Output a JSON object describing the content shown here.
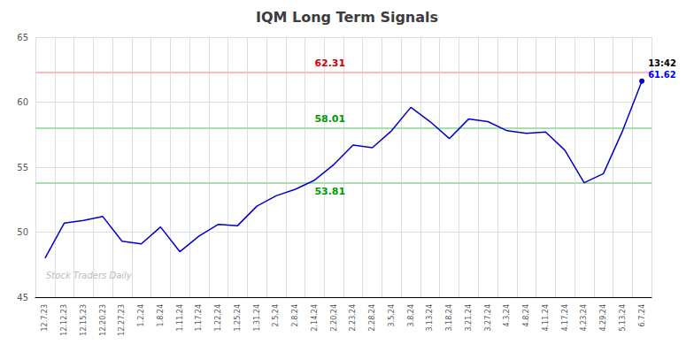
{
  "chart_data": {
    "type": "line",
    "title": "IQM Long Term Signals",
    "categories": [
      "12.7.23",
      "12.12.23",
      "12.15.23",
      "12.20.23",
      "12.27.23",
      "1.2.24",
      "1.8.24",
      "1.11.24",
      "1.17.24",
      "1.22.24",
      "1.25.24",
      "1.31.24",
      "2.5.24",
      "2.8.24",
      "2.14.24",
      "2.20.24",
      "2.23.24",
      "2.28.24",
      "3.5.24",
      "3.8.24",
      "3.13.24",
      "3.18.24",
      "3.21.24",
      "3.27.24",
      "4.3.24",
      "4.8.24",
      "4.11.24",
      "4.17.24",
      "4.23.24",
      "4.29.24",
      "5.13.24",
      "6.7.24"
    ],
    "values": [
      48.0,
      50.7,
      50.9,
      51.2,
      49.3,
      49.1,
      50.4,
      48.5,
      49.7,
      50.6,
      50.5,
      52.0,
      52.8,
      53.3,
      54.0,
      55.2,
      56.7,
      56.5,
      57.8,
      59.6,
      58.5,
      57.2,
      58.7,
      58.5,
      57.8,
      57.6,
      57.7,
      56.3,
      53.8,
      54.5,
      57.8,
      61.62
    ],
    "color": "#0000cc",
    "ylim": [
      45,
      65
    ],
    "yticks": [
      45,
      50,
      55,
      60,
      65
    ],
    "grid": true,
    "hlines": [
      {
        "value": 62.31,
        "color": "#ffbbbb",
        "label_color": "#cc0000",
        "label_at": "2.14.24",
        "label_side": "above"
      },
      {
        "value": 58.01,
        "color": "#aaddaa",
        "label_color": "#009900",
        "label_at": "2.14.24",
        "label_side": "above"
      },
      {
        "value": 53.81,
        "color": "#aaddaa",
        "label_color": "#009900",
        "label_at": "2.14.24",
        "label_side": "below"
      }
    ],
    "annotations": [
      {
        "text": "13:42",
        "color": "#000000"
      },
      {
        "text": "61.62",
        "color": "#0000ff"
      }
    ],
    "watermark": "Stock Traders Daily",
    "watermark_color": "#bbbbbb"
  }
}
